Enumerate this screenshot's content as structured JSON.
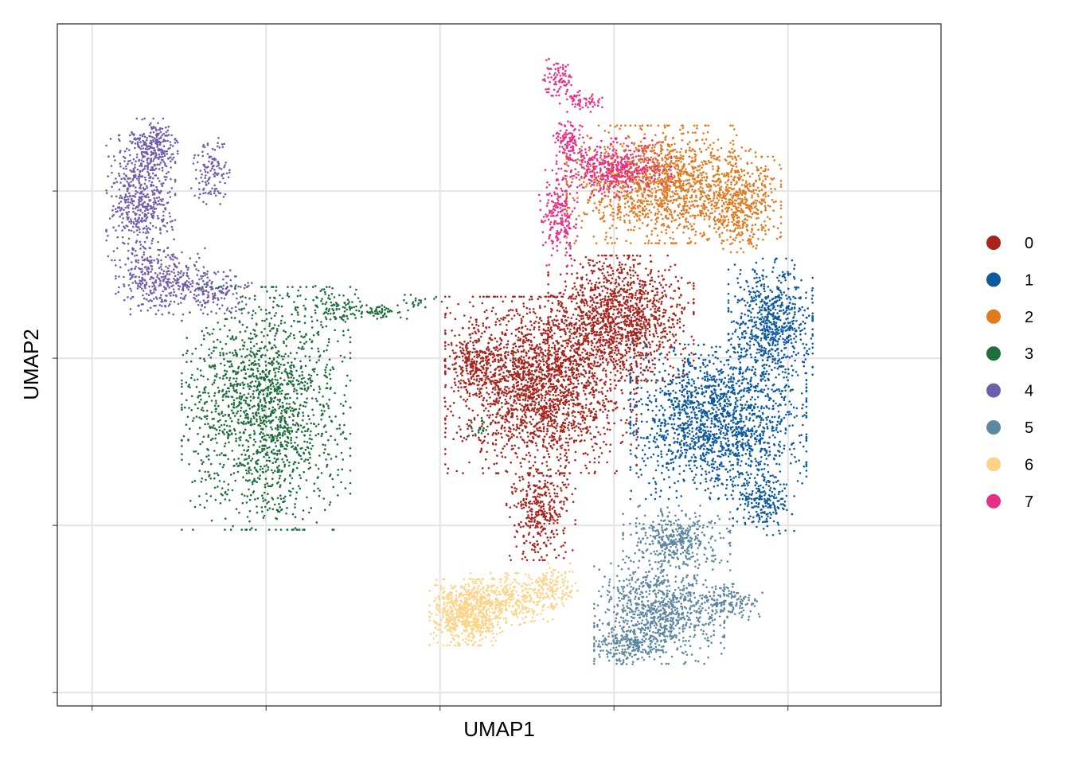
{
  "chart_data": {
    "type": "scatter",
    "title": "",
    "xlabel": "UMAP1",
    "ylabel": "UMAP2",
    "x_ticks": [
      -10,
      -5,
      0,
      5,
      10
    ],
    "y_ticks": [
      -10,
      -5,
      0,
      5
    ],
    "xlim": [
      -11,
      14.4
    ],
    "ylim": [
      -10.4,
      10
    ],
    "grid": true,
    "legend_position": "right",
    "legend": [
      "0",
      "1",
      "2",
      "3",
      "4",
      "5",
      "6",
      "7"
    ],
    "clusters": [
      {
        "name": "0",
        "color": "#A8241D",
        "blobs": [
          {
            "x": 2.9,
            "y": -0.8,
            "rx": 2.5,
            "ry": 2.4,
            "n": 2200
          },
          {
            "x": 5.2,
            "y": 1.2,
            "rx": 1.9,
            "ry": 1.7,
            "n": 1300
          },
          {
            "x": 2.9,
            "y": -4.5,
            "rx": 0.9,
            "ry": 1.4,
            "n": 350
          },
          {
            "x": 0.9,
            "y": -0.2,
            "rx": 0.7,
            "ry": 1.0,
            "n": 200
          }
        ]
      },
      {
        "name": "1",
        "color": "#0D5AA0",
        "blobs": [
          {
            "x": 8.0,
            "y": -1.9,
            "rx": 2.3,
            "ry": 2.1,
            "n": 1700
          },
          {
            "x": 9.5,
            "y": 1.0,
            "rx": 1.1,
            "ry": 1.8,
            "n": 700
          },
          {
            "x": 9.3,
            "y": -4.3,
            "rx": 0.8,
            "ry": 0.9,
            "n": 200
          }
        ]
      },
      {
        "name": "2",
        "color": "#E07B1F",
        "blobs": [
          {
            "x": 6.5,
            "y": 5.2,
            "rx": 2.6,
            "ry": 1.6,
            "n": 1500
          },
          {
            "x": 8.7,
            "y": 4.6,
            "rx": 1.0,
            "ry": 1.3,
            "n": 400
          }
        ]
      },
      {
        "name": "3",
        "color": "#1C6E3A",
        "blobs": [
          {
            "x": -5.0,
            "y": -1.5,
            "rx": 2.2,
            "ry": 3.3,
            "n": 1700
          },
          {
            "x": -3.1,
            "y": 1.5,
            "rx": 0.9,
            "ry": 0.6,
            "n": 100
          },
          {
            "x": -1.8,
            "y": 1.4,
            "rx": 0.8,
            "ry": 0.2,
            "n": 60
          },
          {
            "x": -0.5,
            "y": 1.7,
            "rx": 0.5,
            "ry": 0.2,
            "n": 20
          },
          {
            "x": 1.1,
            "y": -2.1,
            "rx": 0.4,
            "ry": 0.3,
            "n": 20
          }
        ]
      },
      {
        "name": "4",
        "color": "#6D5FAB",
        "blobs": [
          {
            "x": -8.6,
            "y": 4.8,
            "rx": 0.9,
            "ry": 1.7,
            "n": 550
          },
          {
            "x": -8.0,
            "y": 2.3,
            "rx": 1.2,
            "ry": 0.9,
            "n": 350
          },
          {
            "x": -8.2,
            "y": 6.4,
            "rx": 0.6,
            "ry": 0.7,
            "n": 200
          },
          {
            "x": -6.6,
            "y": 5.6,
            "rx": 0.5,
            "ry": 0.9,
            "n": 120
          },
          {
            "x": -6.4,
            "y": 2.0,
            "rx": 0.9,
            "ry": 0.6,
            "n": 130
          }
        ]
      },
      {
        "name": "5",
        "color": "#5E88A1",
        "blobs": [
          {
            "x": 6.3,
            "y": -7.6,
            "rx": 1.7,
            "ry": 1.4,
            "n": 900
          },
          {
            "x": 6.8,
            "y": -5.4,
            "rx": 1.4,
            "ry": 0.9,
            "n": 400
          },
          {
            "x": 8.3,
            "y": -7.3,
            "rx": 0.9,
            "ry": 0.5,
            "n": 150
          },
          {
            "x": 5.3,
            "y": -8.6,
            "rx": 1.0,
            "ry": 0.5,
            "n": 150
          }
        ]
      },
      {
        "name": "6",
        "color": "#FDD487",
        "blobs": [
          {
            "x": 0.8,
            "y": -7.6,
            "rx": 1.0,
            "ry": 0.9,
            "n": 700
          },
          {
            "x": 2.2,
            "y": -7.2,
            "rx": 1.2,
            "ry": 0.7,
            "n": 300
          },
          {
            "x": 3.3,
            "y": -6.8,
            "rx": 0.6,
            "ry": 0.6,
            "n": 120
          }
        ]
      },
      {
        "name": "7",
        "color": "#E82F85",
        "blobs": [
          {
            "x": 5.0,
            "y": 5.7,
            "rx": 1.5,
            "ry": 0.8,
            "n": 450
          },
          {
            "x": 3.4,
            "y": 4.2,
            "rx": 0.5,
            "ry": 1.3,
            "n": 200
          },
          {
            "x": 3.7,
            "y": 6.6,
            "rx": 0.4,
            "ry": 0.6,
            "n": 100
          },
          {
            "x": 4.0,
            "y": 7.7,
            "rx": 0.6,
            "ry": 0.3,
            "n": 60
          },
          {
            "x": 3.4,
            "y": 8.4,
            "rx": 0.4,
            "ry": 0.5,
            "n": 80
          }
        ]
      }
    ]
  }
}
